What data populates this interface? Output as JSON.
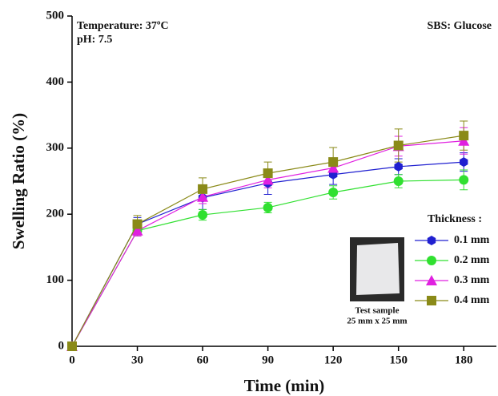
{
  "chart_data": {
    "type": "line",
    "xlabel": "Time (min)",
    "ylabel": "Swelling Ratio (%)",
    "annotations": [
      "Temperature: 37ºC",
      "pH: 7.5",
      "SBS: Glucose"
    ],
    "legend_title": "Thickness :",
    "inset_caption": [
      "Test sample",
      "25 mm x 25 mm"
    ],
    "x": [
      0,
      30,
      60,
      90,
      120,
      150,
      180
    ],
    "xlim": [
      0,
      195
    ],
    "xticks": [
      0,
      30,
      60,
      90,
      120,
      150,
      180
    ],
    "ylim": [
      0,
      500
    ],
    "yticks": [
      0,
      100,
      200,
      300,
      400,
      500
    ],
    "series": [
      {
        "name": "0.1 mm",
        "color": "#2020d0",
        "marker": "hexagon",
        "values": [
          0,
          185,
          225,
          247,
          260,
          272,
          279
        ],
        "errors": [
          null,
          10,
          18,
          17,
          15,
          12,
          14
        ]
      },
      {
        "name": "0.2 mm",
        "color": "#30e030",
        "marker": "circle",
        "values": [
          0,
          175,
          199,
          210,
          233,
          250,
          252
        ],
        "errors": [
          null,
          8,
          8,
          8,
          10,
          10,
          15
        ]
      },
      {
        "name": "0.3 mm",
        "color": "#e020e0",
        "marker": "triangle",
        "values": [
          0,
          175,
          226,
          252,
          270,
          303,
          311
        ],
        "errors": [
          null,
          8,
          10,
          12,
          12,
          15,
          20
        ]
      },
      {
        "name": "0.4 mm",
        "color": "#8a8a18",
        "marker": "square",
        "values": [
          0,
          185,
          238,
          262,
          279,
          304,
          319
        ],
        "errors": [
          null,
          13,
          17,
          17,
          22,
          25,
          22
        ]
      }
    ]
  }
}
